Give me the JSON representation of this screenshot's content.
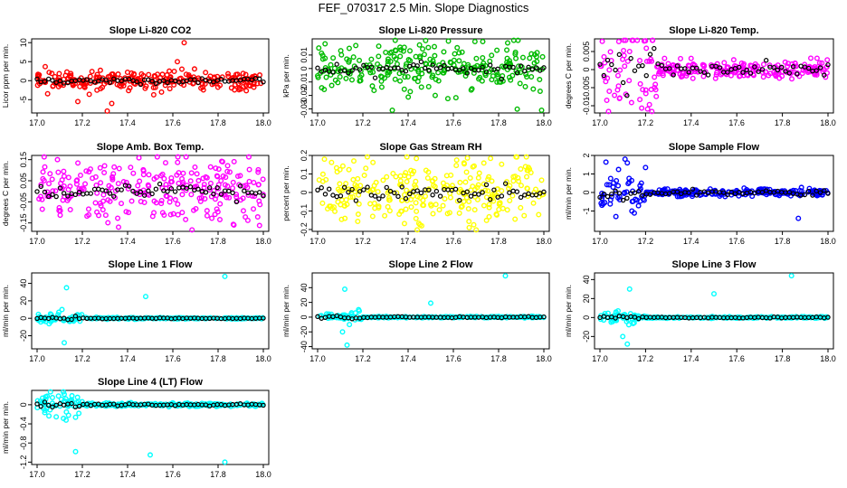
{
  "title": "FEF_070317  2.5 Min. Slope Diagnostics",
  "chart_data": [
    {
      "type": "scatter",
      "title": "Slope Li-820 CO2",
      "ylabel": "Licor ppm per min.",
      "color": "#ff0000",
      "xlim": [
        17.0,
        18.0
      ],
      "ylim": [
        -8.5,
        11
      ],
      "xticks": [
        "17.0",
        "17.2",
        "17.4",
        "17.6",
        "17.8",
        "18.0"
      ],
      "yticks": [
        -5,
        0,
        5,
        10
      ],
      "spread": 1.3,
      "outliers": [
        [
          17.18,
          -5.5
        ],
        [
          17.31,
          -8
        ],
        [
          17.33,
          -6
        ],
        [
          17.65,
          10
        ],
        [
          17.62,
          5
        ],
        [
          17.55,
          -3
        ]
      ]
    },
    {
      "type": "scatter",
      "title": "Slope Li-820 Pressure",
      "ylabel": "kPa per min.",
      "color": "#00bb00",
      "xlim": [
        17.0,
        18.0
      ],
      "ylim": [
        -0.033,
        0.022
      ],
      "xticks": [
        "17.0",
        "17.2",
        "17.4",
        "17.6",
        "17.8",
        "18.0"
      ],
      "yticks": [
        -0.03,
        -0.02,
        -0.01,
        0.0,
        0.01
      ],
      "spread": 0.009,
      "outliers": [
        [
          17.33,
          -0.031
        ],
        [
          17.73,
          0.02
        ],
        [
          17.84,
          0.019
        ],
        [
          17.99,
          -0.031
        ]
      ]
    },
    {
      "type": "scatter",
      "title": "Slope Li-820 Temp.",
      "ylabel": "degrees C per min.",
      "color": "#ff00ff",
      "xlim": [
        17.0,
        18.0
      ],
      "ylim": [
        -0.012,
        0.0085
      ],
      "xticks": [
        "17.0",
        "17.2",
        "17.4",
        "17.6",
        "17.8",
        "18.0"
      ],
      "yticks": [
        -0.01,
        -0.005,
        0.0,
        0.005
      ],
      "spread": 0.0035,
      "decay": 17.25,
      "outliers": [
        [
          17.01,
          0.0078
        ],
        [
          17.03,
          -0.0085
        ],
        [
          17.13,
          0.005
        ]
      ]
    },
    {
      "type": "scatter",
      "title": "Slope Amb. Box Temp.",
      "ylabel": "degrees C per min.",
      "color": "#ff00ff",
      "xlim": [
        17.0,
        18.0
      ],
      "ylim": [
        -0.19,
        0.17
      ],
      "xticks": [
        "17.0",
        "17.2",
        "17.4",
        "17.6",
        "17.8",
        "18.0"
      ],
      "yticks": [
        -0.15,
        -0.05,
        0.05,
        0.15
      ],
      "spread": 0.07,
      "outliers": [
        [
          17.09,
          0.15
        ],
        [
          17.36,
          -0.17
        ],
        [
          17.82,
          0.14
        ],
        [
          17.87,
          -0.16
        ]
      ]
    },
    {
      "type": "scatter",
      "title": "Slope Gas Stream RH",
      "ylabel": "percent per min.",
      "color": "#ffff00",
      "xlim": [
        17.0,
        18.0
      ],
      "ylim": [
        -0.21,
        0.2
      ],
      "xticks": [
        "17.0",
        "17.2",
        "17.4",
        "17.6",
        "17.8",
        "18.0"
      ],
      "yticks": [
        -0.2,
        -0.1,
        0.0,
        0.1,
        0.2
      ],
      "spread": 0.08,
      "outliers": [
        [
          17.03,
          0.18
        ],
        [
          17.16,
          0.17
        ],
        [
          17.46,
          -0.18
        ],
        [
          17.67,
          -0.19
        ]
      ]
    },
    {
      "type": "scatter",
      "title": "Slope Sample Flow",
      "ylabel": "ml/min per min.",
      "color": "#0000ff",
      "xlim": [
        17.0,
        18.0
      ],
      "ylim": [
        -2.1,
        2.0
      ],
      "xticks": [
        "17.0",
        "17.2",
        "17.4",
        "17.6",
        "17.8",
        "18.0"
      ],
      "yticks": [
        -1,
        0,
        1,
        2
      ],
      "spread": 0.28,
      "decay": 17.2,
      "outliers": [
        [
          17.11,
          1.8
        ],
        [
          17.12,
          1.6
        ],
        [
          17.07,
          -1.3
        ],
        [
          17.14,
          -1.0
        ],
        [
          17.87,
          -1.4
        ]
      ]
    },
    {
      "type": "scatter",
      "title": "Slope Line 1 Flow",
      "ylabel": "ml/min per min.",
      "color": "#00ffff",
      "xlim": [
        17.0,
        18.0
      ],
      "ylim": [
        -35,
        52
      ],
      "xticks": [
        "17.0",
        "17.2",
        "17.4",
        "17.6",
        "17.8",
        "18.0"
      ],
      "yticks": [
        -20,
        0,
        20,
        40
      ],
      "spread": 1.2,
      "decay": 17.2,
      "outliers": [
        [
          17.13,
          35
        ],
        [
          17.12,
          -28
        ],
        [
          17.48,
          25
        ],
        [
          17.83,
          48
        ],
        [
          17.11,
          10
        ]
      ]
    },
    {
      "type": "scatter",
      "title": "Slope Line 2 Flow",
      "ylabel": "ml/min per min.",
      "color": "#00ffff",
      "xlim": [
        17.0,
        18.0
      ],
      "ylim": [
        -43,
        60
      ],
      "xticks": [
        "17.0",
        "17.2",
        "17.4",
        "17.6",
        "17.8",
        "18.0"
      ],
      "yticks": [
        -40,
        -20,
        0,
        20,
        40
      ],
      "spread": 1.3,
      "decay": 17.2,
      "outliers": [
        [
          17.12,
          38
        ],
        [
          17.13,
          -38
        ],
        [
          17.5,
          19
        ],
        [
          17.83,
          56
        ],
        [
          17.11,
          -20
        ]
      ]
    },
    {
      "type": "scatter",
      "title": "Slope Line 3 Flow",
      "ylabel": "ml/min per min.",
      "color": "#00ffff",
      "xlim": [
        17.0,
        18.0
      ],
      "ylim": [
        -33,
        47
      ],
      "xticks": [
        "17.0",
        "17.2",
        "17.4",
        "17.6",
        "17.8",
        "18.0"
      ],
      "yticks": [
        -20,
        0,
        20,
        40
      ],
      "spread": 1.2,
      "decay": 17.2,
      "outliers": [
        [
          17.13,
          30
        ],
        [
          17.12,
          -28
        ],
        [
          17.5,
          25
        ],
        [
          17.84,
          44
        ],
        [
          17.1,
          -20
        ]
      ]
    },
    {
      "type": "scatter",
      "title": "Slope Line 4 (LT) Flow",
      "ylabel": "ml/min per min.",
      "color": "#00ffff",
      "xlim": [
        17.0,
        18.0
      ],
      "ylim": [
        -1.25,
        0.3
      ],
      "xticks": [
        "17.0",
        "17.2",
        "17.4",
        "17.6",
        "17.8",
        "18.0"
      ],
      "yticks": [
        -1.2,
        -0.8,
        -0.4,
        0.0
      ],
      "spread": 0.05,
      "decay": 17.2,
      "outliers": [
        [
          17.17,
          -0.98
        ],
        [
          17.5,
          -1.05
        ],
        [
          17.83,
          -1.2
        ],
        [
          17.12,
          0.22
        ]
      ]
    }
  ]
}
